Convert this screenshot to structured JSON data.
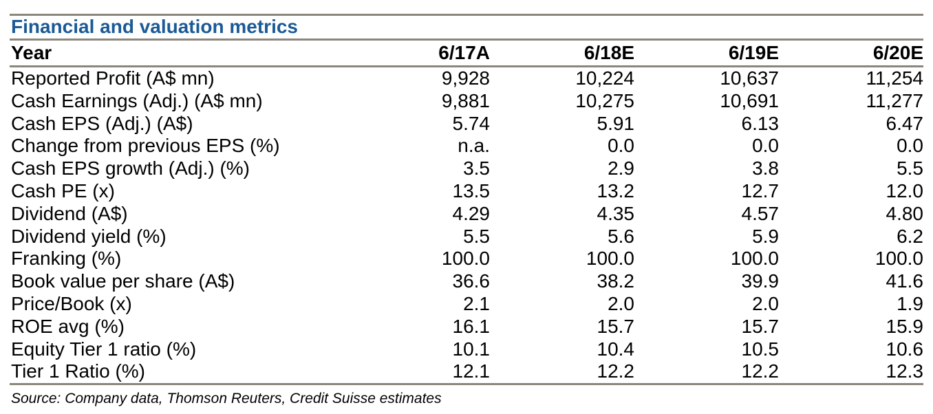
{
  "page": {
    "title": "Financial and valuation metrics",
    "source": "Source: Company data, Thomson Reuters, Credit Suisse estimates"
  },
  "colors": {
    "title": "#1A5A96",
    "rule": "#8B857B",
    "text": "#000000"
  },
  "table": {
    "header": {
      "label": "Year",
      "columns": [
        "6/17A",
        "6/18E",
        "6/19E",
        "6/20E"
      ]
    },
    "rows": [
      {
        "label": "Reported Profit (A$ mn)",
        "values": [
          "9,928",
          "10,224",
          "10,637",
          "11,254"
        ]
      },
      {
        "label": "Cash Earnings (Adj.) (A$ mn)",
        "values": [
          "9,881",
          "10,275",
          "10,691",
          "11,277"
        ]
      },
      {
        "label": "Cash EPS (Adj.) (A$)",
        "values": [
          "5.74",
          "5.91",
          "6.13",
          "6.47"
        ]
      },
      {
        "label": "Change from previous EPS (%)",
        "values": [
          "n.a.",
          "0.0",
          "0.0",
          "0.0"
        ]
      },
      {
        "label": "Cash EPS growth (Adj.) (%)",
        "values": [
          "3.5",
          "2.9",
          "3.8",
          "5.5"
        ]
      },
      {
        "label": "Cash PE (x)",
        "values": [
          "13.5",
          "13.2",
          "12.7",
          "12.0"
        ]
      },
      {
        "label": "Dividend (A$)",
        "values": [
          "4.29",
          "4.35",
          "4.57",
          "4.80"
        ]
      },
      {
        "label": "Dividend yield (%)",
        "values": [
          "5.5",
          "5.6",
          "5.9",
          "6.2"
        ]
      },
      {
        "label": "Franking (%)",
        "values": [
          "100.0",
          "100.0",
          "100.0",
          "100.0"
        ]
      },
      {
        "label": "Book value per share (A$)",
        "values": [
          "36.6",
          "38.2",
          "39.9",
          "41.6"
        ]
      },
      {
        "label": "Price/Book (x)",
        "values": [
          "2.1",
          "2.0",
          "2.0",
          "1.9"
        ]
      },
      {
        "label": "ROE avg (%)",
        "values": [
          "16.1",
          "15.7",
          "15.7",
          "15.9"
        ]
      },
      {
        "label": "Equity Tier 1 ratio (%)",
        "values": [
          "10.1",
          "10.4",
          "10.5",
          "10.6"
        ]
      },
      {
        "label": "Tier 1 Ratio (%)",
        "values": [
          "12.1",
          "12.2",
          "12.2",
          "12.3"
        ]
      }
    ]
  }
}
